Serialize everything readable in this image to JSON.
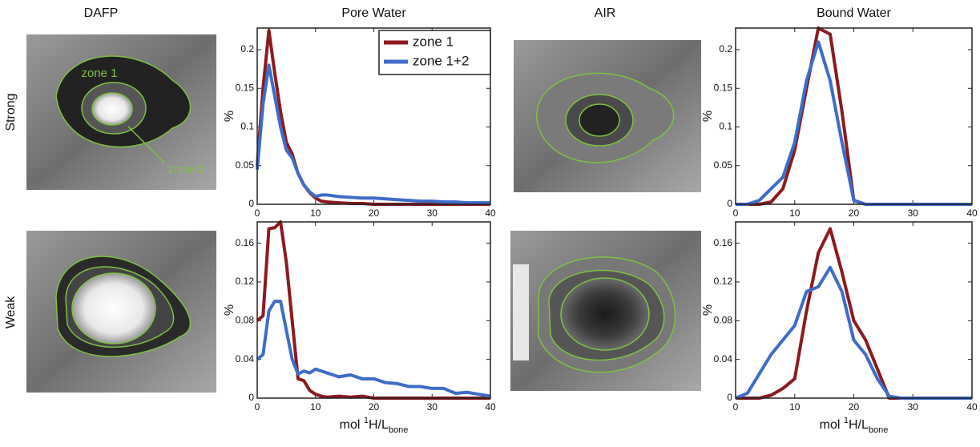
{
  "figure": {
    "image_columns": [
      "DAFP",
      "AIR"
    ],
    "row_labels": [
      "Strong",
      "Weak"
    ],
    "zone_labels": [
      "zone 1",
      "zone 2"
    ]
  },
  "chart_data": [
    {
      "type": "line",
      "title": "Pore Water",
      "y_label": "%",
      "legend": true,
      "x": [
        0,
        1,
        2,
        3,
        4,
        5,
        6,
        7,
        8,
        9,
        10,
        11,
        12,
        14,
        16,
        18,
        20,
        22,
        24,
        26,
        28,
        30,
        32,
        34,
        36,
        38,
        40
      ],
      "series": [
        {
          "name": "zone 1",
          "color": "#8b1a1f",
          "values": [
            0.05,
            0.15,
            0.225,
            0.17,
            0.12,
            0.08,
            0.065,
            0.04,
            0.025,
            0.015,
            0.008,
            0.004,
            0.003,
            0.002,
            0.001,
            0.001,
            0,
            0,
            0,
            0,
            0,
            0,
            0,
            0,
            0,
            0,
            0
          ]
        },
        {
          "name": "zone 1+2",
          "color": "#3d6cc9",
          "values": [
            0.045,
            0.13,
            0.18,
            0.14,
            0.1,
            0.07,
            0.06,
            0.04,
            0.025,
            0.016,
            0.01,
            0.012,
            0.012,
            0.01,
            0.009,
            0.008,
            0.008,
            0.007,
            0.006,
            0.005,
            0.004,
            0.004,
            0.003,
            0.003,
            0.002,
            0.002,
            0.002
          ]
        }
      ],
      "xlim": [
        0,
        40
      ],
      "xticks": [
        0,
        10,
        20,
        30,
        40
      ],
      "ylim": [
        0,
        0.228
      ],
      "yticks": [
        0,
        0.05,
        0.1,
        0.15,
        0.2
      ]
    },
    {
      "type": "line",
      "y_label": "%",
      "x_label": [
        "mol ",
        "1",
        "H/L",
        "bone"
      ],
      "x": [
        0,
        1,
        2,
        3,
        4,
        5,
        6,
        7,
        8,
        9,
        10,
        11,
        12,
        14,
        16,
        18,
        20,
        22,
        24,
        26,
        28,
        30,
        32,
        34,
        36,
        38,
        40
      ],
      "series": [
        {
          "color": "#8b1a1f",
          "values": [
            0.08,
            0.085,
            0.175,
            0.176,
            0.182,
            0.14,
            0.08,
            0.02,
            0.018,
            0.008,
            0.004,
            0.002,
            0.001,
            0.002,
            0.001,
            0.002,
            0,
            0,
            0,
            0,
            0,
            0,
            0,
            0,
            0,
            0,
            0
          ]
        },
        {
          "color": "#3d6cc9",
          "values": [
            0.04,
            0.045,
            0.09,
            0.1,
            0.1,
            0.07,
            0.04,
            0.025,
            0.028,
            0.026,
            0.03,
            0.028,
            0.026,
            0.022,
            0.024,
            0.02,
            0.02,
            0.016,
            0.015,
            0.012,
            0.012,
            0.01,
            0.01,
            0.005,
            0.006,
            0.004,
            0.002
          ]
        }
      ],
      "xlim": [
        0,
        40
      ],
      "xticks": [
        0,
        10,
        20,
        30,
        40
      ],
      "ylim": [
        0,
        0.182
      ],
      "yticks": [
        0,
        0.04,
        0.08,
        0.12,
        0.16
      ]
    },
    {
      "type": "line",
      "title": "Bound Water",
      "y_label": "%",
      "x": [
        0,
        2,
        4,
        6,
        8,
        10,
        12,
        14,
        16,
        18,
        20,
        22,
        24,
        26,
        28,
        30,
        32,
        34,
        36,
        38,
        40
      ],
      "series": [
        {
          "color": "#8b1a1f",
          "values": [
            0,
            0,
            0,
            0.003,
            0.02,
            0.07,
            0.15,
            0.228,
            0.22,
            0.12,
            0.005,
            0,
            0,
            0,
            0,
            0,
            0,
            0,
            0,
            0,
            0
          ]
        },
        {
          "color": "#3d6cc9",
          "values": [
            0,
            0,
            0.005,
            0.02,
            0.035,
            0.08,
            0.16,
            0.21,
            0.16,
            0.08,
            0.005,
            0,
            0,
            0,
            0,
            0,
            0,
            0,
            0,
            0,
            0
          ]
        }
      ],
      "xlim": [
        0,
        40
      ],
      "xticks": [
        0,
        10,
        20,
        30,
        40
      ],
      "ylim": [
        0,
        0.228
      ],
      "yticks": [
        0,
        0.05,
        0.1,
        0.15,
        0.2
      ]
    },
    {
      "type": "line",
      "y_label": "%",
      "x_label": [
        "mol ",
        "1",
        "H/L",
        "bone"
      ],
      "x": [
        0,
        2,
        4,
        6,
        8,
        10,
        12,
        14,
        16,
        18,
        20,
        22,
        24,
        26,
        28,
        30,
        32,
        34,
        36,
        38,
        40
      ],
      "series": [
        {
          "color": "#8b1a1f",
          "values": [
            0,
            0,
            0,
            0.003,
            0.01,
            0.02,
            0.09,
            0.15,
            0.175,
            0.13,
            0.08,
            0.06,
            0.03,
            0,
            0,
            0,
            0,
            0,
            0,
            0,
            0
          ]
        },
        {
          "color": "#3d6cc9",
          "values": [
            0,
            0.005,
            0.025,
            0.045,
            0.06,
            0.075,
            0.11,
            0.115,
            0.135,
            0.11,
            0.06,
            0.045,
            0.02,
            0.002,
            0,
            0,
            0,
            0,
            0,
            0,
            0
          ]
        }
      ],
      "xlim": [
        0,
        40
      ],
      "xticks": [
        0,
        10,
        20,
        30,
        40
      ],
      "ylim": [
        0,
        0.182
      ],
      "yticks": [
        0,
        0.04,
        0.08,
        0.12,
        0.16
      ]
    }
  ]
}
